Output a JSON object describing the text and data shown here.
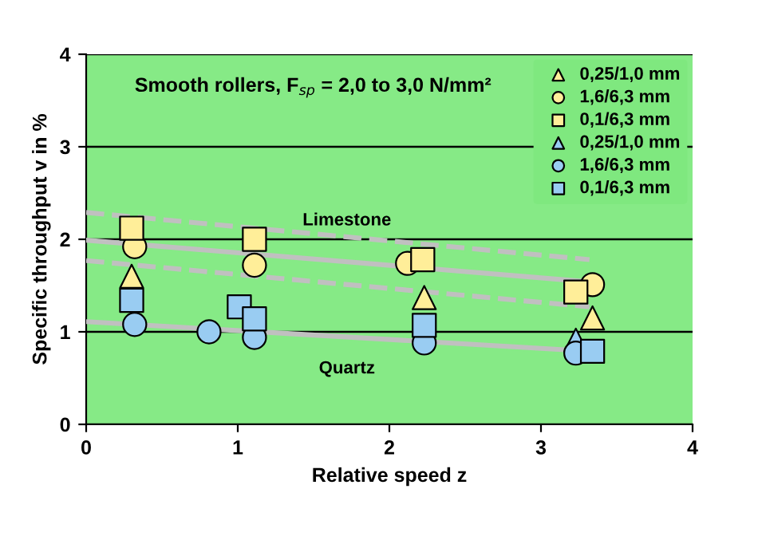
{
  "chart_data": {
    "type": "scatter",
    "title": "Smooth rollers, F$_{sp}$ = 2,0 to 3,0 N/mm²",
    "xlabel": "Relative speed z",
    "ylabel": "Specific throughput v in %",
    "xlim": [
      0,
      4
    ],
    "ylim": [
      0,
      4
    ],
    "xticks": [
      0,
      1,
      2,
      3,
      4
    ],
    "yticks": [
      0,
      1,
      2,
      3,
      4
    ],
    "grid": "y",
    "legend": "top right",
    "annotations": [
      "Limestone",
      "Quartz"
    ],
    "series": [
      {
        "name": "0,25/1,0 mm",
        "color": "#ffee99",
        "marker": "triangle",
        "x": [
          0.3,
          2.23,
          3.34
        ],
        "values": [
          1.6,
          1.37,
          1.15
        ]
      },
      {
        "name": "1,6/6,3 mm",
        "color": "#ffee99",
        "marker": "circle",
        "x": [
          0.32,
          1.11,
          2.12,
          3.34
        ],
        "values": [
          1.92,
          1.72,
          1.74,
          1.51
        ]
      },
      {
        "name": "0,1/6,3 mm",
        "color": "#ffee99",
        "marker": "square",
        "x": [
          0.3,
          1.11,
          2.22,
          3.23
        ],
        "values": [
          2.12,
          2.0,
          1.78,
          1.43
        ]
      },
      {
        "name": "0,25/1,0 mm",
        "color": "#99ccf2",
        "marker": "triangle",
        "x": [
          3.23
        ],
        "values": [
          0.91
        ]
      },
      {
        "name": "1,6/6,3 mm",
        "color": "#99ccf2",
        "marker": "circle",
        "x": [
          0.32,
          0.81,
          1.11,
          2.23,
          3.23
        ],
        "values": [
          1.08,
          1.0,
          0.94,
          0.88,
          0.77
        ]
      },
      {
        "name": "0,1/6,3 mm",
        "color": "#99ccf2",
        "marker": "square",
        "x": [
          0.3,
          1.01,
          1.11,
          2.23,
          3.34
        ],
        "values": [
          1.34,
          1.27,
          1.14,
          1.07,
          0.79
        ]
      },
      {
        "type": "line",
        "color": "#c0c0c0",
        "line_style": "solid",
        "x": [
          0,
          3.32
        ],
        "values": [
          1.99,
          1.54
        ]
      },
      {
        "type": "line",
        "color": "#c0c0c0",
        "line_style": "dashed",
        "x": [
          0,
          3.32
        ],
        "values": [
          2.29,
          1.78
        ]
      },
      {
        "type": "line",
        "color": "#c0c0c0",
        "line_style": "dashed",
        "x": [
          0,
          3.32
        ],
        "values": [
          1.77,
          1.27
        ]
      },
      {
        "type": "line",
        "color": "#c0c0c0",
        "line_style": "solid",
        "x": [
          0,
          3.32
        ],
        "values": [
          1.11,
          0.79
        ]
      }
    ]
  }
}
